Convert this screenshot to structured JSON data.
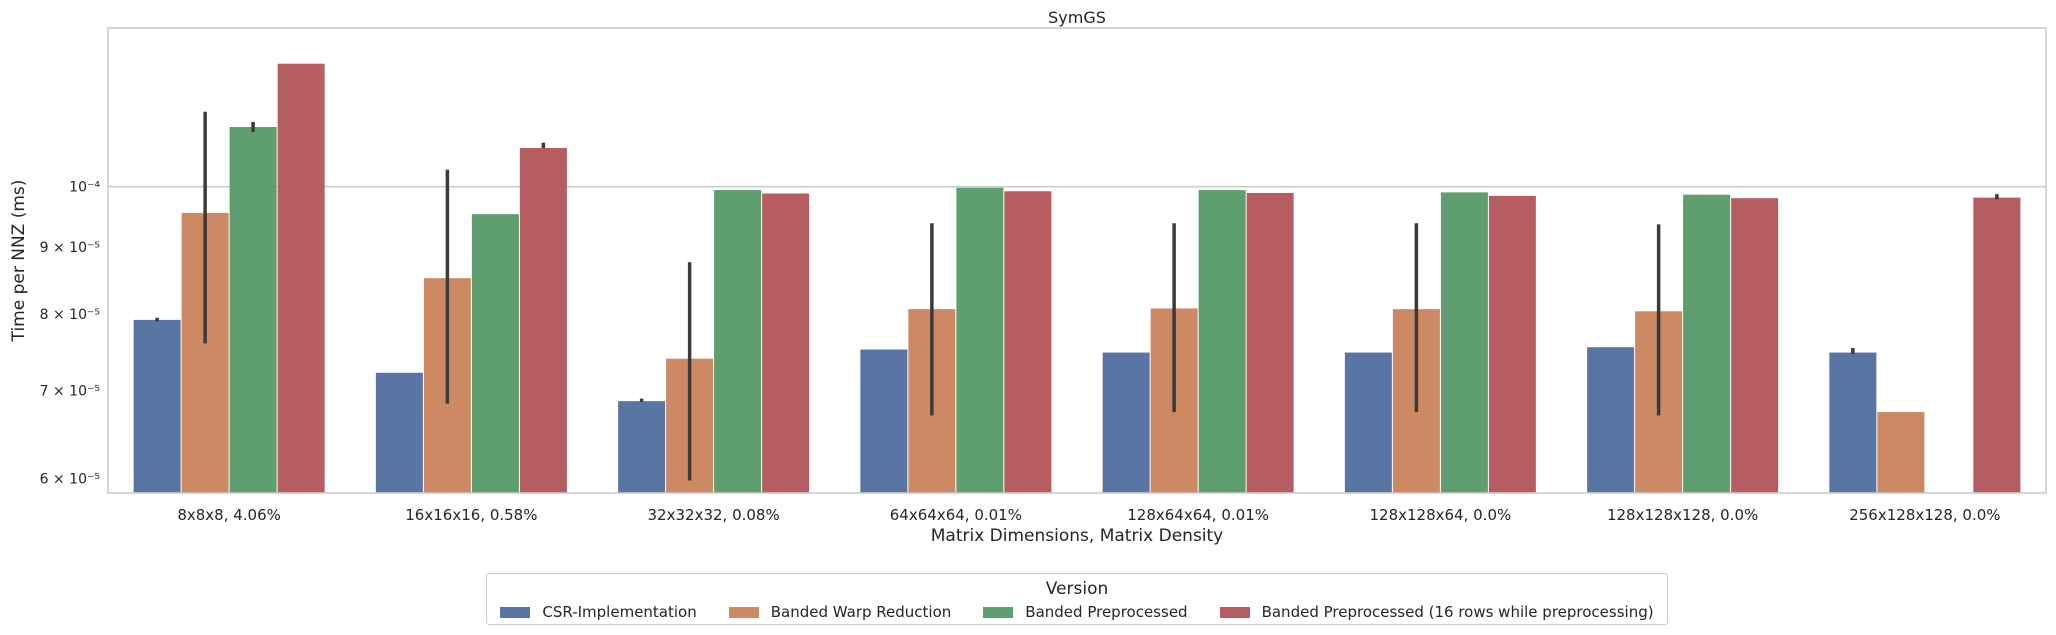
{
  "chart_data": {
    "type": "bar",
    "title": "SymGS",
    "xlabel": "Matrix Dimensions, Matrix Density",
    "ylabel": "Time per NNZ (ms)",
    "yscale": "log",
    "ylim": [
      5.85e-05,
      0.000132
    ],
    "yticks": [
      {
        "value": 6e-05,
        "label": "6 × 10⁻⁵"
      },
      {
        "value": 7e-05,
        "label": "7 × 10⁻⁵"
      },
      {
        "value": 8e-05,
        "label": "8 × 10⁻⁵"
      },
      {
        "value": 9e-05,
        "label": "9 × 10⁻⁵"
      },
      {
        "value": 0.0001,
        "label": "10⁻⁴"
      }
    ],
    "categories": [
      "8x8x8, 4.06%",
      "16x16x16, 0.58%",
      "32x32x32, 0.08%",
      "64x64x64, 0.01%",
      "128x64x64, 0.01%",
      "128x128x64, 0.0%",
      "128x128x128, 0.0%",
      "256x128x128, 0.0%"
    ],
    "series": [
      {
        "name": "CSR-Implementation",
        "color": "#5975a4",
        "values": [
          7.92e-05,
          7.22e-05,
          6.87e-05,
          7.52e-05,
          7.48e-05,
          7.48e-05,
          7.55e-05,
          7.48e-05
        ],
        "err": [
          [
            7.9e-05,
            7.95e-05
          ],
          null,
          [
            6.86e-05,
            6.9e-05
          ],
          null,
          null,
          null,
          null,
          [
            7.46e-05,
            7.54e-05
          ]
        ]
      },
      {
        "name": "Banded Warp Reduction",
        "color": "#cc8963",
        "values": [
          9.55e-05,
          8.52e-05,
          7.4e-05,
          8.07e-05,
          8.08e-05,
          8.07e-05,
          8.04e-05,
          6.74e-05
        ],
        "err": [
          [
            7.6e-05,
            0.000114
          ],
          [
            6.84e-05,
            0.000103
          ],
          [
            5.98e-05,
            8.76e-05
          ],
          [
            6.7e-05,
            9.38e-05
          ],
          [
            6.74e-05,
            9.38e-05
          ],
          [
            6.74e-05,
            9.38e-05
          ],
          [
            6.7e-05,
            9.36e-05
          ],
          null
        ]
      },
      {
        "name": "Banded Preprocessed",
        "color": "#5f9e6e",
        "values": [
          0.000111,
          9.53e-05,
          9.94e-05,
          9.98e-05,
          9.94e-05,
          9.9e-05,
          9.86e-05,
          null
        ],
        "err": [
          [
            0.00011,
            0.000112
          ],
          null,
          null,
          null,
          null,
          null,
          null,
          null
        ]
      },
      {
        "name": "Banded Preprocessed (16 rows while preprocessing)",
        "color": "#b55d60",
        "values": [
          0.000124,
          0.000107,
          9.88e-05,
          9.92e-05,
          9.89e-05,
          9.84e-05,
          9.8e-05,
          9.81e-05
        ],
        "err": [
          null,
          [
            0.000107,
            0.000108
          ],
          null,
          null,
          null,
          null,
          null,
          [
            9.78e-05,
            9.87e-05
          ]
        ]
      }
    ],
    "legend": {
      "title": "Version",
      "position": "bottom-center"
    },
    "grid": "horizontal major"
  }
}
